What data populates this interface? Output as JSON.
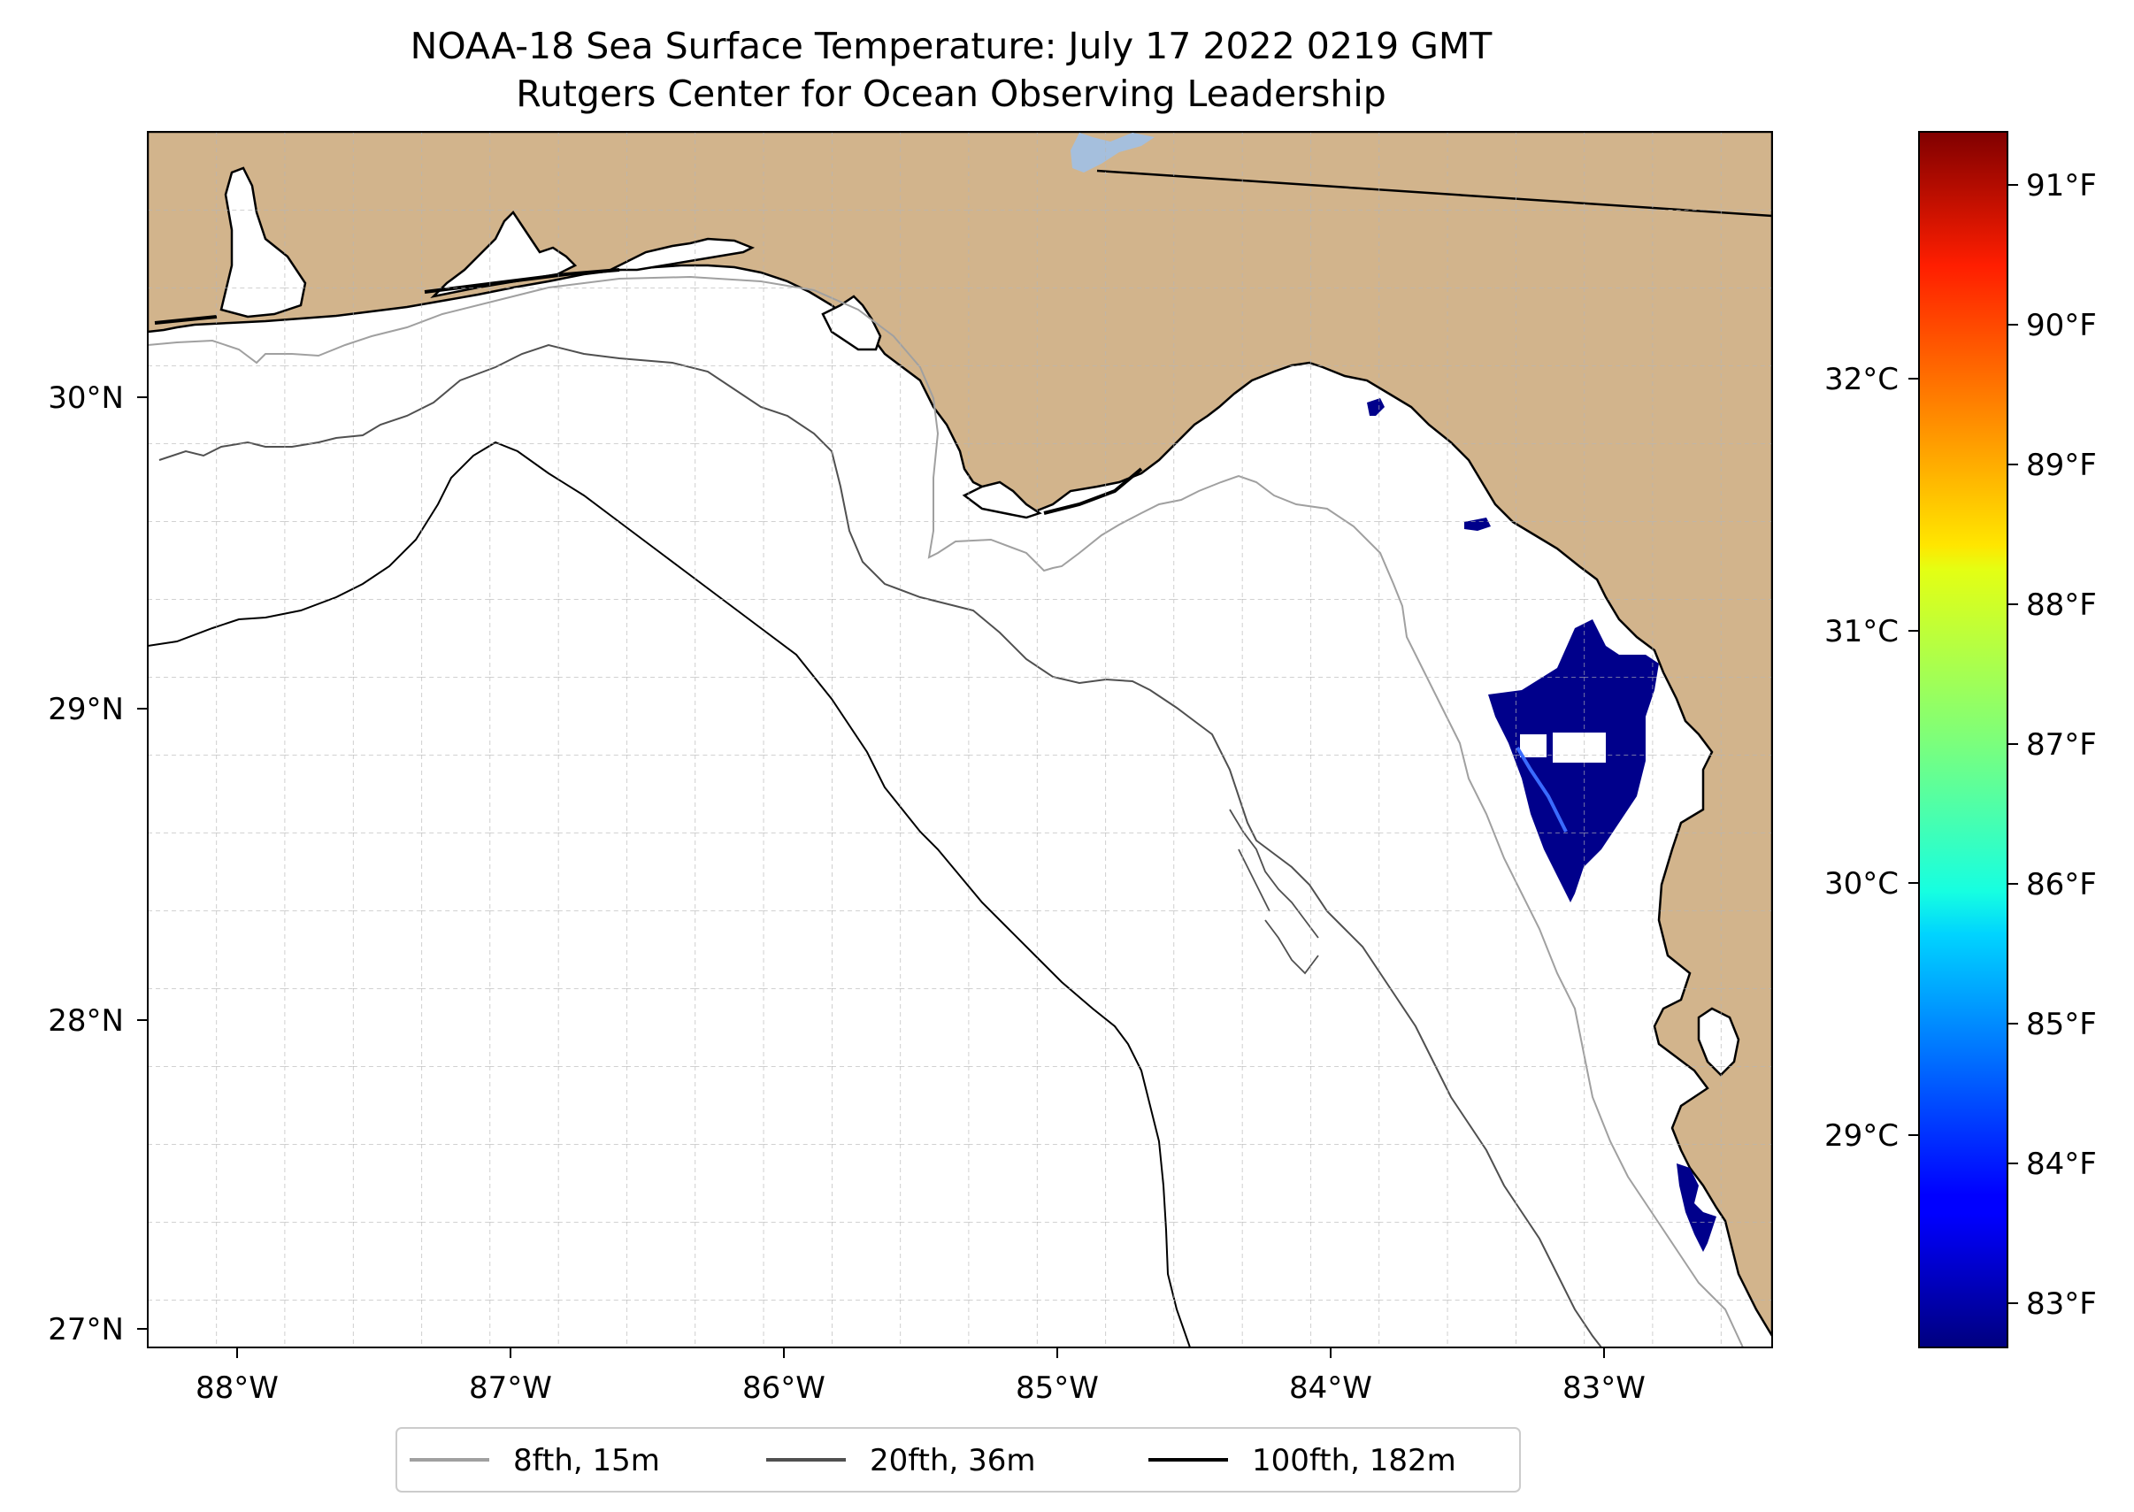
{
  "title": {
    "line1": "NOAA-18 Sea Surface Temperature: July 17 2022 0219 GMT",
    "line2": "Rutgers Center for Ocean Observing Leadership"
  },
  "colors": {
    "land": "#d2b48c",
    "ocean": "#ffffff",
    "lake": "#a5bfdd",
    "sst_patch": "#00008b",
    "iso_8": "#a0a0a0",
    "iso_20": "#505050",
    "iso_100": "#000000"
  },
  "map": {
    "lon_ticks": [
      "88°W",
      "87°W",
      "86°W",
      "85°W",
      "84°W",
      "83°W"
    ],
    "lat_ticks": [
      "30°N",
      "29°N",
      "28°N",
      "27°N"
    ]
  },
  "colorbar": {
    "cmap": "jet",
    "fahrenheit_ticks": [
      "91°F",
      "90°F",
      "89°F",
      "88°F",
      "87°F",
      "86°F",
      "85°F",
      "84°F",
      "83°F"
    ],
    "celsius_ticks": [
      "32°C",
      "31°C",
      "30°C",
      "29°C"
    ]
  },
  "legend": {
    "items": [
      {
        "label": "8fth, 15m",
        "color": "#a0a0a0"
      },
      {
        "label": "20fth, 36m",
        "color": "#505050"
      },
      {
        "label": "100fth, 182m",
        "color": "#000000"
      }
    ]
  }
}
